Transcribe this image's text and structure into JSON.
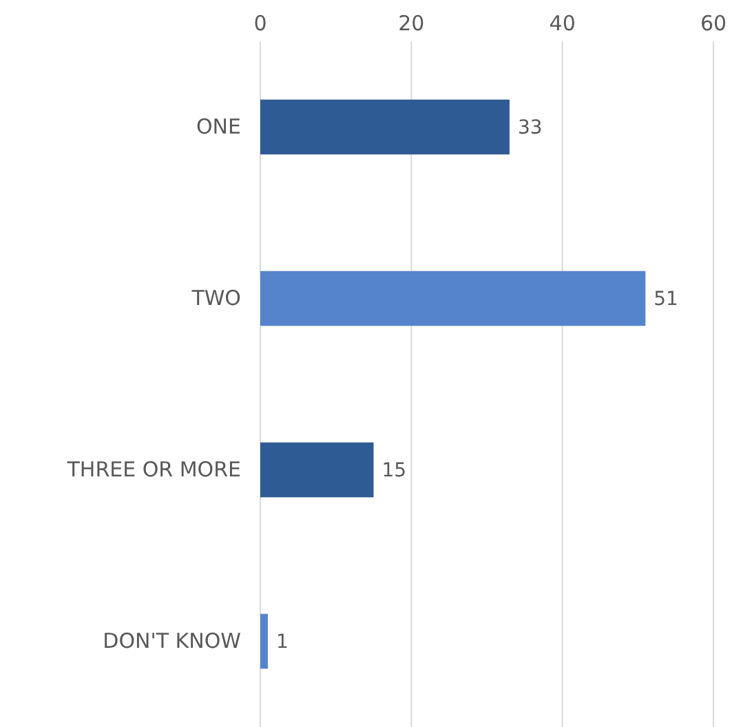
{
  "chart_data": {
    "type": "bar",
    "orientation": "horizontal",
    "categories": [
      "ONE",
      "TWO",
      "THREE OR MORE",
      "DON'T KNOW"
    ],
    "values": [
      33,
      51,
      15,
      1
    ],
    "colors": [
      "#2f5b94",
      "#5584cc",
      "#2f5b94",
      "#5584cc"
    ],
    "xlim": [
      0,
      60
    ],
    "xticks": [
      0,
      20,
      40,
      60
    ],
    "grid": "x",
    "data_labels": true
  }
}
